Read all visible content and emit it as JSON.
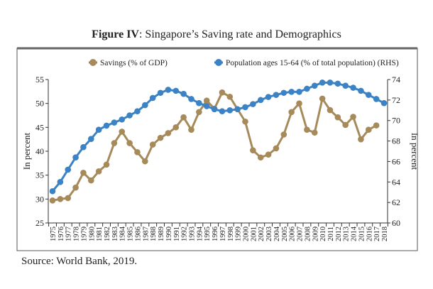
{
  "title": {
    "bold": "Figure IV",
    "rest": ": Singapore’s Saving rate and Demographics"
  },
  "source": "Source: World Bank, 2019.",
  "colors": {
    "savings": "#A68A5A",
    "population": "#3B83C4",
    "axis": "#333333",
    "frame": "#555555"
  },
  "chart_data": {
    "type": "line",
    "x": [
      1975,
      1976,
      1977,
      1978,
      1979,
      1980,
      1981,
      1982,
      1983,
      1984,
      1985,
      1986,
      1987,
      1988,
      1989,
      1990,
      1991,
      1992,
      1993,
      1994,
      1995,
      1996,
      1997,
      1998,
      1999,
      2000,
      2001,
      2002,
      2003,
      2004,
      2005,
      2006,
      2007,
      2008,
      2009,
      2010,
      2011,
      2012,
      2013,
      2014,
      2015,
      2016,
      2017,
      2018
    ],
    "x_tick_labels": [
      "1975",
      "1976",
      "1977",
      "1978",
      "1979",
      "1980",
      "1981",
      "1982",
      "1983",
      "1984",
      "1985",
      "1986",
      "1987",
      "1988",
      "1989",
      "1990",
      "1991",
      "1992",
      "1993",
      "1994",
      "1995",
      "1996",
      "1997",
      "1998",
      "1999",
      "2000",
      "2001",
      "2002",
      "2003",
      "2004",
      "2005",
      "2006",
      "2007",
      "2008",
      "2009",
      "2010",
      "2011",
      "2012",
      "2013",
      "2014",
      "2015",
      "2016",
      "2017",
      "2018"
    ],
    "ylabel": "In percent",
    "y2label": "In percent",
    "ylim": [
      25,
      55
    ],
    "y_ticks": [
      25,
      30,
      35,
      40,
      45,
      50,
      55
    ],
    "y2lim": [
      60,
      74
    ],
    "y2_ticks": [
      60,
      62,
      64,
      66,
      68,
      70,
      72,
      74
    ],
    "grid": false,
    "legend_position": "top",
    "series": [
      {
        "name": "Savings (% of GDP)",
        "axis": "left",
        "values": [
          29.7,
          30.0,
          30.2,
          32.4,
          35.5,
          33.9,
          35.8,
          37.2,
          41.7,
          44.1,
          41.7,
          39.8,
          37.9,
          41.4,
          42.8,
          43.8,
          45.0,
          47.1,
          44.5,
          48.2,
          50.6,
          48.9,
          52.3,
          51.4,
          48.8,
          46.2,
          40.2,
          38.7,
          39.3,
          40.6,
          43.5,
          48.2,
          50.0,
          44.5,
          43.9,
          51.0,
          48.6,
          47.1,
          45.5,
          47.2,
          42.5,
          44.5,
          45.4,
          null
        ]
      },
      {
        "name": "Population ages 15-64 (% of total population) (RHS)",
        "axis": "right",
        "values": [
          63.1,
          64.0,
          65.2,
          66.4,
          67.4,
          68.2,
          69.1,
          69.5,
          69.8,
          70.1,
          70.5,
          70.9,
          71.5,
          72.2,
          72.7,
          73.0,
          72.9,
          72.6,
          72.1,
          71.7,
          71.4,
          71.1,
          70.9,
          71.0,
          71.1,
          71.3,
          71.6,
          72.0,
          72.3,
          72.5,
          72.7,
          72.8,
          72.8,
          73.1,
          73.4,
          73.7,
          73.7,
          73.6,
          73.4,
          73.2,
          72.9,
          72.5,
          72.1,
          71.7
        ]
      }
    ]
  }
}
